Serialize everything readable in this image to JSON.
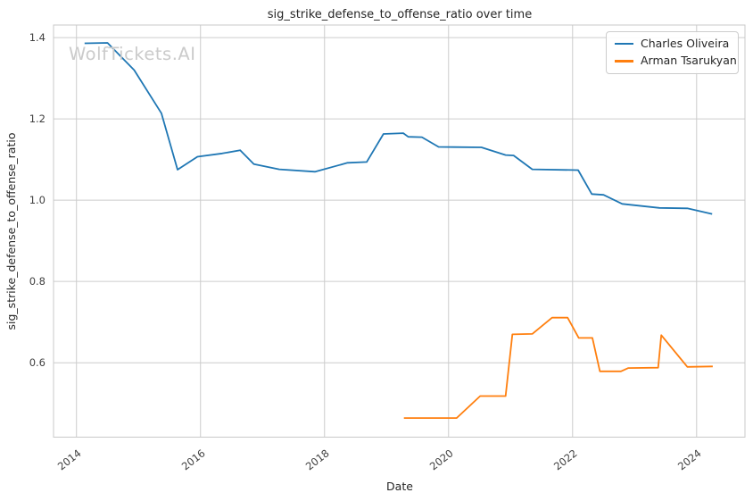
{
  "watermark": "WolfTickets.AI",
  "chart_data": {
    "type": "line",
    "title": "sig_strike_defense_to_offense_ratio over time",
    "xlabel": "Date",
    "ylabel": "sig_strike_defense_to_offense_ratio",
    "x_tick_labels": [
      "2014",
      "2016",
      "2018",
      "2020",
      "2022",
      "2024"
    ],
    "x_tick_values": [
      2014,
      2016,
      2018,
      2020,
      2022,
      2024
    ],
    "y_tick_labels": [
      "0.6",
      "0.8",
      "1.0",
      "1.2",
      "1.4"
    ],
    "y_tick_values": [
      0.6,
      0.8,
      1.0,
      1.2,
      1.4
    ],
    "xlim": [
      2013.63,
      2024.78
    ],
    "ylim": [
      0.417,
      1.431
    ],
    "grid": true,
    "legend": {
      "position": "upper right",
      "items": [
        "Charles Oliveira",
        "Arman Tsarukyan"
      ]
    },
    "series": [
      {
        "name": "Charles Oliveira",
        "color": "#1f77b4",
        "points": [
          [
            2014.13,
            1.386
          ],
          [
            2014.5,
            1.387
          ],
          [
            2014.93,
            1.32
          ],
          [
            2015.37,
            1.214
          ],
          [
            2015.63,
            1.075
          ],
          [
            2015.95,
            1.107
          ],
          [
            2016.35,
            1.115
          ],
          [
            2016.64,
            1.123
          ],
          [
            2016.86,
            1.089
          ],
          [
            2017.27,
            1.076
          ],
          [
            2017.85,
            1.07
          ],
          [
            2018.37,
            1.092
          ],
          [
            2018.68,
            1.094
          ],
          [
            2018.95,
            1.163
          ],
          [
            2019.27,
            1.165
          ],
          [
            2019.35,
            1.156
          ],
          [
            2019.57,
            1.155
          ],
          [
            2019.84,
            1.131
          ],
          [
            2020.53,
            1.13
          ],
          [
            2020.92,
            1.111
          ],
          [
            2021.05,
            1.11
          ],
          [
            2021.35,
            1.076
          ],
          [
            2022.09,
            1.074
          ],
          [
            2022.31,
            1.015
          ],
          [
            2022.5,
            1.013
          ],
          [
            2022.8,
            0.991
          ],
          [
            2023.4,
            0.981
          ],
          [
            2023.85,
            0.98
          ],
          [
            2024.25,
            0.966
          ]
        ]
      },
      {
        "name": "Arman Tsarukyan",
        "color": "#ff7f0e",
        "points": [
          [
            2019.28,
            0.464
          ],
          [
            2020.13,
            0.464
          ],
          [
            2020.51,
            0.518
          ],
          [
            2020.92,
            0.518
          ],
          [
            2021.03,
            0.67
          ],
          [
            2021.35,
            0.671
          ],
          [
            2021.67,
            0.711
          ],
          [
            2021.92,
            0.711
          ],
          [
            2022.1,
            0.661
          ],
          [
            2022.32,
            0.661
          ],
          [
            2022.44,
            0.579
          ],
          [
            2022.78,
            0.579
          ],
          [
            2022.9,
            0.587
          ],
          [
            2023.38,
            0.588
          ],
          [
            2023.43,
            0.668
          ],
          [
            2023.85,
            0.59
          ],
          [
            2024.26,
            0.591
          ]
        ]
      }
    ]
  }
}
